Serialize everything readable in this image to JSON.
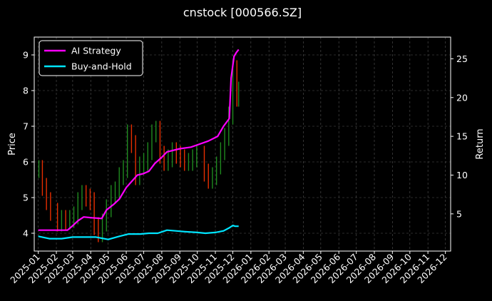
{
  "chart_data": {
    "type": "line",
    "title": "cnstock [000566.SZ]",
    "ylabel_left": "Price",
    "ylabel_right": "Return",
    "xlabel": "",
    "grid": true,
    "legend_position": "top-left",
    "x_tick_labels": [
      "2025-01",
      "2025-02",
      "2025-03",
      "2025-04",
      "2025-05",
      "2025-06",
      "2025-07",
      "2025-08",
      "2025-09",
      "2025-10",
      "2025-11",
      "2025-12",
      "2026-01",
      "2026-02",
      "2026-03",
      "2026-04",
      "2026-05",
      "2026-06",
      "2026-07",
      "2026-08",
      "2026-09",
      "2026-10",
      "2026-11",
      "2026-12"
    ],
    "xlim": [
      "2024-12-25",
      "2026-12-10"
    ],
    "ylim_left": [
      3.5,
      9.5
    ],
    "left_ticks": [
      4,
      5,
      6,
      7,
      8,
      9
    ],
    "ylim_right": [
      0.2,
      27.8
    ],
    "right_ticks": [
      5,
      10,
      15,
      20,
      25
    ],
    "colors": {
      "background": "#000000",
      "up_candle": "#1f8a1f",
      "down_candle": "#e62e00",
      "ai_strategy": "#ff00ff",
      "buy_and_hold": "#00e5ff",
      "grid": "#555555"
    },
    "price_series": {
      "name": "Price",
      "x": [
        "2025-01-02",
        "2025-01-08",
        "2025-01-15",
        "2025-01-22",
        "2025-02-03",
        "2025-02-10",
        "2025-02-17",
        "2025-02-24",
        "2025-03-03",
        "2025-03-10",
        "2025-03-17",
        "2025-03-24",
        "2025-03-31",
        "2025-04-07",
        "2025-04-14",
        "2025-04-21",
        "2025-04-28",
        "2025-05-06",
        "2025-05-13",
        "2025-05-20",
        "2025-05-27",
        "2025-06-03",
        "2025-06-10",
        "2025-06-17",
        "2025-06-24",
        "2025-07-01",
        "2025-07-08",
        "2025-07-15",
        "2025-07-22",
        "2025-07-29",
        "2025-08-05",
        "2025-08-12",
        "2025-08-19",
        "2025-08-26",
        "2025-09-02",
        "2025-09-09",
        "2025-09-16",
        "2025-09-23",
        "2025-09-30",
        "2025-10-13",
        "2025-10-20",
        "2025-10-27",
        "2025-11-03",
        "2025-11-10",
        "2025-11-17",
        "2025-11-24",
        "2025-12-01",
        "2025-12-08",
        "2025-12-11"
      ],
      "values": [
        5.8,
        5.3,
        4.9,
        4.6,
        4.3,
        4.4,
        4.35,
        4.4,
        4.5,
        4.9,
        5.1,
        5.0,
        4.9,
        4.2,
        4.0,
        4.3,
        4.7,
        5.1,
        5.2,
        5.6,
        5.8,
        6.8,
        6.5,
        5.6,
        5.9,
        6.0,
        6.3,
        6.8,
        6.9,
        6.2,
        6.0,
        6.1,
        6.3,
        6.2,
        6.1,
        6.0,
        6.0,
        6.1,
        6.2,
        5.7,
        5.5,
        5.6,
        5.9,
        6.3,
        6.7,
        7.3,
        8.6,
        7.8,
        8.0
      ]
    },
    "series": [
      {
        "name": "AI Strategy",
        "x": [
          "2025-01-01",
          "2025-02-20",
          "2025-02-28",
          "2025-03-10",
          "2025-03-20",
          "2025-04-03",
          "2025-04-20",
          "2025-04-28",
          "2025-05-10",
          "2025-05-20",
          "2025-06-01",
          "2025-06-20",
          "2025-07-01",
          "2025-07-10",
          "2025-07-20",
          "2025-08-01",
          "2025-08-10",
          "2025-09-01",
          "2025-09-20",
          "2025-10-05",
          "2025-10-20",
          "2025-11-05",
          "2025-11-15",
          "2025-11-25",
          "2025-11-28",
          "2025-12-03",
          "2025-12-07",
          "2025-12-11"
        ],
        "values": [
          2.9,
          2.9,
          3.4,
          4.1,
          4.6,
          4.5,
          4.4,
          5.5,
          6.2,
          6.9,
          8.4,
          10.0,
          10.2,
          10.5,
          11.5,
          12.3,
          13.0,
          13.4,
          13.6,
          14.0,
          14.4,
          15.0,
          16.3,
          17.3,
          22.5,
          25.3,
          25.8,
          26.2
        ]
      },
      {
        "name": "Buy-and-Hold",
        "x": [
          "2025-01-01",
          "2025-01-20",
          "2025-02-10",
          "2025-03-01",
          "2025-03-20",
          "2025-04-10",
          "2025-05-01",
          "2025-05-20",
          "2025-06-05",
          "2025-06-25",
          "2025-07-10",
          "2025-07-25",
          "2025-08-10",
          "2025-08-25",
          "2025-09-10",
          "2025-10-01",
          "2025-10-15",
          "2025-11-01",
          "2025-11-15",
          "2025-11-25",
          "2025-12-01",
          "2025-12-05",
          "2025-12-11"
        ],
        "values": [
          2.1,
          1.8,
          1.8,
          2.0,
          2.0,
          2.0,
          1.7,
          2.1,
          2.4,
          2.4,
          2.5,
          2.5,
          2.9,
          2.8,
          2.7,
          2.6,
          2.5,
          2.6,
          2.8,
          3.2,
          3.5,
          3.4,
          3.4
        ]
      }
    ]
  }
}
